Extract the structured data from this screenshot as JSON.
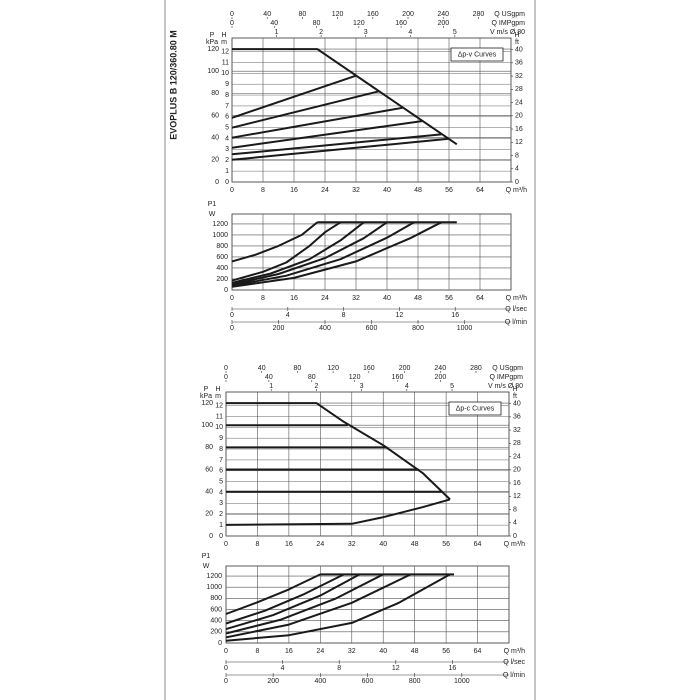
{
  "header": {
    "model": "EVOPLUS B 120/360.80 M"
  },
  "chart_data": [
    {
      "type": "line",
      "y_label": "P",
      "y_unit": "kPa",
      "x_label": "Q m³/h",
      "xlim": [
        0,
        72
      ],
      "xticks": [
        0,
        8,
        16,
        24,
        32,
        40,
        48,
        56,
        64
      ],
      "ylim": [
        0,
        130
      ],
      "yticks": [
        0,
        20,
        40,
        60,
        80,
        100,
        120
      ],
      "grid": true,
      "color": "#1a1a1a",
      "annotation": "Δp-v Curves",
      "axes": [
        {
          "position": "top",
          "label": "Q USgpm",
          "lim": [
            0,
            317
          ],
          "ticks": [
            0,
            40,
            80,
            120,
            160,
            200,
            240,
            280
          ]
        },
        {
          "position": "top",
          "label": "Q IMPgpm",
          "lim": [
            0,
            264
          ],
          "ticks": [
            0,
            40,
            80,
            120,
            160,
            200
          ]
        },
        {
          "position": "top",
          "label": "V m/s Ø 80",
          "lim": [
            0,
            6.26
          ],
          "ticks": [
            1,
            2,
            3,
            4,
            5
          ]
        },
        {
          "position": "left",
          "label": "H",
          "unit": "m",
          "lim": [
            0,
            13.25
          ],
          "ticks": [
            0,
            1,
            2,
            3,
            4,
            5,
            6,
            7,
            8,
            9,
            10,
            11,
            12
          ],
          "grid": true
        },
        {
          "position": "right",
          "label": "H",
          "unit": "ft",
          "lim": [
            0,
            43.5
          ],
          "ticks": [
            0,
            4,
            8,
            12,
            16,
            20,
            24,
            28,
            32,
            36,
            40
          ]
        }
      ],
      "series": [
        {
          "x": [
            0,
            22,
            58
          ],
          "values": [
            120,
            120,
            34
          ]
        },
        {
          "x": [
            0,
            32
          ],
          "values": [
            58,
            96
          ]
        },
        {
          "x": [
            0,
            38
          ],
          "values": [
            49,
            82
          ]
        },
        {
          "x": [
            0,
            44
          ],
          "values": [
            40,
            67
          ]
        },
        {
          "x": [
            0,
            49
          ],
          "values": [
            31,
            55
          ]
        },
        {
          "x": [
            0,
            54
          ],
          "values": [
            25,
            43
          ]
        },
        {
          "x": [
            0,
            56
          ],
          "values": [
            20,
            39
          ]
        }
      ]
    },
    {
      "type": "line",
      "y_label": "P1",
      "y_unit": "W",
      "x_label": "Q m³/h",
      "xlim": [
        0,
        72
      ],
      "xticks": [
        0,
        8,
        16,
        24,
        32,
        40,
        48,
        56,
        64
      ],
      "ylim": [
        0,
        1380
      ],
      "yticks": [
        0,
        200,
        400,
        600,
        800,
        1000,
        1200
      ],
      "grid": true,
      "color": "#1a1a1a",
      "axes": [
        {
          "position": "bottom",
          "label": "Q l/sec",
          "lim": [
            0,
            20
          ],
          "ticks": [
            0,
            4,
            8,
            12,
            16
          ]
        },
        {
          "position": "bottom",
          "label": "Q l/min",
          "lim": [
            0,
            1200
          ],
          "ticks": [
            0,
            200,
            400,
            600,
            800,
            1000
          ]
        }
      ],
      "series": [
        {
          "x": [
            22,
            58
          ],
          "values": [
            1230,
            1230
          ]
        },
        {
          "x": [
            0,
            6,
            12,
            18,
            22
          ],
          "values": [
            520,
            640,
            800,
            1000,
            1230
          ]
        },
        {
          "x": [
            0,
            8,
            14,
            20,
            24,
            28
          ],
          "values": [
            170,
            330,
            500,
            800,
            1050,
            1230
          ]
        },
        {
          "x": [
            0,
            10,
            20,
            28,
            34
          ],
          "values": [
            130,
            300,
            560,
            900,
            1230
          ]
        },
        {
          "x": [
            0,
            12,
            24,
            34,
            40
          ],
          "values": [
            100,
            290,
            580,
            940,
            1230
          ]
        },
        {
          "x": [
            0,
            14,
            28,
            40,
            47
          ],
          "values": [
            80,
            260,
            560,
            950,
            1230
          ]
        },
        {
          "x": [
            0,
            16,
            32,
            46,
            54
          ],
          "values": [
            60,
            220,
            520,
            940,
            1230
          ]
        }
      ]
    },
    {
      "type": "line",
      "y_label": "P",
      "y_unit": "kPa",
      "x_label": "Q m³/h",
      "xlim": [
        0,
        72
      ],
      "xticks": [
        0,
        8,
        16,
        24,
        32,
        40,
        48,
        56,
        64
      ],
      "ylim": [
        0,
        130
      ],
      "yticks": [
        0,
        20,
        40,
        60,
        80,
        100,
        120
      ],
      "grid": true,
      "color": "#1a1a1a",
      "annotation": "Δp-c Curves",
      "axes": [
        {
          "position": "top",
          "label": "Q USgpm",
          "lim": [
            0,
            317
          ],
          "ticks": [
            0,
            40,
            80,
            120,
            160,
            200,
            240,
            280
          ]
        },
        {
          "position": "top",
          "label": "Q IMPgpm",
          "lim": [
            0,
            264
          ],
          "ticks": [
            0,
            40,
            80,
            120,
            160,
            200
          ]
        },
        {
          "position": "top",
          "label": "V m/s Ø 80",
          "lim": [
            0,
            6.26
          ],
          "ticks": [
            1,
            2,
            3,
            4,
            5
          ]
        },
        {
          "position": "left",
          "label": "H",
          "unit": "m",
          "lim": [
            0,
            13.25
          ],
          "ticks": [
            0,
            1,
            2,
            3,
            4,
            5,
            6,
            7,
            8,
            9,
            10,
            11,
            12
          ],
          "grid": true
        },
        {
          "position": "right",
          "label": "H",
          "unit": "ft",
          "lim": [
            0,
            43.5
          ],
          "ticks": [
            0,
            4,
            8,
            12,
            16,
            20,
            24,
            28,
            32,
            36,
            40
          ]
        }
      ],
      "series": [
        {
          "x": [
            0,
            23,
            30,
            40,
            50,
            57
          ],
          "values": [
            120,
            120,
            103,
            82,
            57,
            33
          ]
        },
        {
          "x": [
            0,
            32,
            40,
            50,
            57
          ],
          "values": [
            10,
            11,
            17,
            26,
            33
          ]
        },
        {
          "x": [
            0,
            31
          ],
          "values": [
            100,
            100
          ]
        },
        {
          "x": [
            0,
            41
          ],
          "values": [
            80,
            80
          ]
        },
        {
          "x": [
            0,
            49
          ],
          "values": [
            60,
            60
          ]
        },
        {
          "x": [
            0,
            55
          ],
          "values": [
            40,
            40
          ]
        }
      ]
    },
    {
      "type": "line",
      "y_label": "P1",
      "y_unit": "W",
      "x_label": "Q m³/h",
      "xlim": [
        0,
        72
      ],
      "xticks": [
        0,
        8,
        16,
        24,
        32,
        40,
        48,
        56,
        64
      ],
      "ylim": [
        0,
        1380
      ],
      "yticks": [
        0,
        200,
        400,
        600,
        800,
        1000,
        1200
      ],
      "grid": true,
      "color": "#1a1a1a",
      "axes": [
        {
          "position": "bottom",
          "label": "Q l/sec",
          "lim": [
            0,
            20
          ],
          "ticks": [
            0,
            4,
            8,
            12,
            16
          ]
        },
        {
          "position": "bottom",
          "label": "Q l/min",
          "lim": [
            0,
            1200
          ],
          "ticks": [
            0,
            200,
            400,
            600,
            800,
            1000
          ]
        }
      ],
      "series": [
        {
          "x": [
            24,
            58
          ],
          "values": [
            1230,
            1230
          ]
        },
        {
          "x": [
            0,
            8,
            16,
            24
          ],
          "values": [
            520,
            730,
            960,
            1230
          ]
        },
        {
          "x": [
            0,
            10,
            20,
            30
          ],
          "values": [
            350,
            580,
            880,
            1230
          ]
        },
        {
          "x": [
            0,
            12,
            24,
            34
          ],
          "values": [
            250,
            500,
            850,
            1230
          ]
        },
        {
          "x": [
            0,
            14,
            28,
            40
          ],
          "values": [
            170,
            420,
            800,
            1230
          ]
        },
        {
          "x": [
            0,
            16,
            32,
            47
          ],
          "values": [
            100,
            330,
            720,
            1230
          ]
        },
        {
          "x": [
            0,
            16,
            32,
            44,
            57
          ],
          "values": [
            40,
            140,
            360,
            720,
            1230
          ]
        }
      ]
    }
  ]
}
